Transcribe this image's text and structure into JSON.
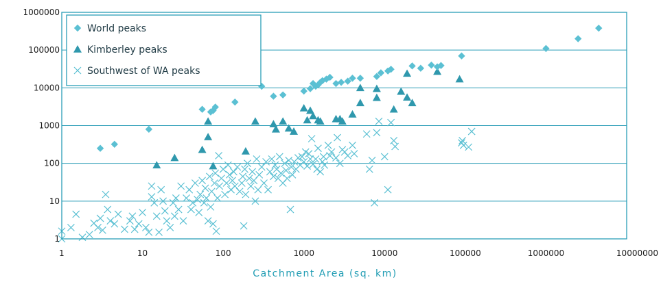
{
  "chart_data": {
    "type": "scatter",
    "title": "",
    "xlabel": "Catchment Area (sq. km)",
    "ylabel": "",
    "x_scale": "log",
    "y_scale": "log",
    "xlim": [
      1,
      10000000
    ],
    "ylim": [
      1,
      1000000
    ],
    "x_ticks": [
      "1",
      "10",
      "100",
      "1000",
      "10000",
      "100000",
      "1000000",
      "10000000"
    ],
    "y_ticks": [
      "1",
      "10",
      "100",
      "1000",
      "10000",
      "100000",
      "1000000"
    ],
    "grid": "horizontal",
    "legend_position": "top-left",
    "colors": {
      "marker": "#5bc0d3",
      "frame": "#2a9db6",
      "grid": "#2a9db6",
      "axis_title": "#1f9cb3"
    },
    "series": [
      {
        "name": "World peaks",
        "marker": "diamond",
        "points": [
          [
            3,
            250
          ],
          [
            4.5,
            320
          ],
          [
            12,
            800
          ],
          [
            55,
            2700
          ],
          [
            70,
            2300
          ],
          [
            75,
            2500
          ],
          [
            80,
            3100
          ],
          [
            140,
            4200
          ],
          [
            300,
            11000
          ],
          [
            420,
            6000
          ],
          [
            550,
            6500
          ],
          [
            1000,
            8200
          ],
          [
            1200,
            9500
          ],
          [
            1300,
            13000
          ],
          [
            1400,
            11000
          ],
          [
            1500,
            12000
          ],
          [
            1600,
            14000
          ],
          [
            1700,
            15500
          ],
          [
            1900,
            17000
          ],
          [
            2100,
            19000
          ],
          [
            2500,
            13000
          ],
          [
            2900,
            14000
          ],
          [
            3500,
            15000
          ],
          [
            4000,
            18000
          ],
          [
            5000,
            18000
          ],
          [
            8000,
            20000
          ],
          [
            9000,
            25000
          ],
          [
            11000,
            28000
          ],
          [
            12000,
            31000
          ],
          [
            22000,
            38000
          ],
          [
            28000,
            33000
          ],
          [
            38000,
            40000
          ],
          [
            45000,
            36000
          ],
          [
            50000,
            39000
          ],
          [
            90000,
            70000
          ],
          [
            1000000,
            110000
          ],
          [
            2500000,
            200000
          ],
          [
            4500000,
            380000
          ]
        ]
      },
      {
        "name": "Kimberley peaks",
        "marker": "triangle",
        "points": [
          [
            15,
            90
          ],
          [
            25,
            140
          ],
          [
            55,
            230
          ],
          [
            65,
            1300
          ],
          [
            65,
            500
          ],
          [
            75,
            85
          ],
          [
            190,
            210
          ],
          [
            250,
            1300
          ],
          [
            420,
            1100
          ],
          [
            450,
            800
          ],
          [
            550,
            1300
          ],
          [
            650,
            850
          ],
          [
            750,
            700
          ],
          [
            1000,
            2900
          ],
          [
            1100,
            1400
          ],
          [
            1200,
            2500
          ],
          [
            1300,
            1800
          ],
          [
            1500,
            1400
          ],
          [
            1600,
            1300
          ],
          [
            2500,
            1500
          ],
          [
            2800,
            1500
          ],
          [
            3000,
            1300
          ],
          [
            4000,
            2000
          ],
          [
            5000,
            4000
          ],
          [
            5000,
            10000
          ],
          [
            8000,
            5500
          ],
          [
            8000,
            9500
          ],
          [
            13000,
            2700
          ],
          [
            16000,
            8000
          ],
          [
            19000,
            24000
          ],
          [
            19000,
            5600
          ],
          [
            22000,
            4000
          ],
          [
            45000,
            27000
          ],
          [
            85000,
            17000
          ]
        ]
      },
      {
        "name": "Southwest of WA peaks",
        "marker": "x",
        "points": [
          [
            1,
            1.6
          ],
          [
            1,
            1
          ],
          [
            1.3,
            2
          ],
          [
            1.5,
            4.5
          ],
          [
            1.8,
            1.1
          ],
          [
            2.2,
            1.3
          ],
          [
            2.5,
            2.6
          ],
          [
            2.8,
            2
          ],
          [
            3,
            3.5
          ],
          [
            3.2,
            1.7
          ],
          [
            3.5,
            15
          ],
          [
            3.7,
            6
          ],
          [
            4,
            3
          ],
          [
            4.5,
            2.5
          ],
          [
            5,
            4.5
          ],
          [
            6,
            1.8
          ],
          [
            7,
            3
          ],
          [
            7.5,
            4
          ],
          [
            8,
            1.8
          ],
          [
            9,
            2.5
          ],
          [
            10,
            5
          ],
          [
            11,
            2
          ],
          [
            12,
            1.5
          ],
          [
            13,
            25
          ],
          [
            13,
            13
          ],
          [
            14,
            9
          ],
          [
            15,
            4
          ],
          [
            16,
            1.5
          ],
          [
            17,
            20
          ],
          [
            18,
            10
          ],
          [
            19,
            5.5
          ],
          [
            20,
            3
          ],
          [
            22,
            2
          ],
          [
            24,
            9
          ],
          [
            25,
            4
          ],
          [
            26,
            12
          ],
          [
            28,
            6
          ],
          [
            30,
            25
          ],
          [
            32,
            3
          ],
          [
            35,
            12
          ],
          [
            38,
            20
          ],
          [
            40,
            6
          ],
          [
            42,
            9
          ],
          [
            45,
            30
          ],
          [
            48,
            11
          ],
          [
            50,
            5
          ],
          [
            52,
            15
          ],
          [
            55,
            35
          ],
          [
            58,
            9
          ],
          [
            60,
            22
          ],
          [
            62,
            12
          ],
          [
            65,
            3
          ],
          [
            68,
            45
          ],
          [
            70,
            7
          ],
          [
            72,
            18
          ],
          [
            75,
            2.5
          ],
          [
            78,
            30
          ],
          [
            80,
            55
          ],
          [
            82,
            1.6
          ],
          [
            85,
            12
          ],
          [
            88,
            160
          ],
          [
            90,
            25
          ],
          [
            95,
            40
          ],
          [
            100,
            70
          ],
          [
            105,
            15
          ],
          [
            110,
            30
          ],
          [
            115,
            90
          ],
          [
            120,
            50
          ],
          [
            125,
            20
          ],
          [
            130,
            35
          ],
          [
            135,
            60
          ],
          [
            140,
            25
          ],
          [
            150,
            80
          ],
          [
            160,
            18
          ],
          [
            170,
            30
          ],
          [
            175,
            45
          ],
          [
            180,
            2.2
          ],
          [
            185,
            70
          ],
          [
            190,
            15
          ],
          [
            200,
            100
          ],
          [
            210,
            40
          ],
          [
            220,
            25
          ],
          [
            230,
            60
          ],
          [
            240,
            35
          ],
          [
            250,
            10
          ],
          [
            260,
            130
          ],
          [
            270,
            20
          ],
          [
            280,
            50
          ],
          [
            300,
            80
          ],
          [
            320,
            30
          ],
          [
            340,
            110
          ],
          [
            360,
            20
          ],
          [
            380,
            60
          ],
          [
            400,
            130
          ],
          [
            420,
            45
          ],
          [
            440,
            90
          ],
          [
            460,
            70
          ],
          [
            480,
            40
          ],
          [
            500,
            150
          ],
          [
            520,
            55
          ],
          [
            550,
            30
          ],
          [
            580,
            100
          ],
          [
            600,
            65
          ],
          [
            620,
            40
          ],
          [
            650,
            120
          ],
          [
            680,
            6
          ],
          [
            700,
            80
          ],
          [
            720,
            50
          ],
          [
            760,
            110
          ],
          [
            800,
            70
          ],
          [
            850,
            140
          ],
          [
            900,
            90
          ],
          [
            950,
            150
          ],
          [
            1000,
            110
          ],
          [
            1050,
            200
          ],
          [
            1100,
            85
          ],
          [
            1150,
            180
          ],
          [
            1200,
            130
          ],
          [
            1250,
            450
          ],
          [
            1300,
            95
          ],
          [
            1400,
            130
          ],
          [
            1450,
            70
          ],
          [
            1500,
            250
          ],
          [
            1600,
            60
          ],
          [
            1700,
            110
          ],
          [
            1750,
            150
          ],
          [
            1800,
            90
          ],
          [
            2000,
            300
          ],
          [
            2100,
            160
          ],
          [
            2200,
            200
          ],
          [
            2500,
            140
          ],
          [
            2600,
            480
          ],
          [
            2800,
            100
          ],
          [
            3000,
            230
          ],
          [
            3200,
            200
          ],
          [
            3500,
            160
          ],
          [
            4000,
            300
          ],
          [
            4200,
            180
          ],
          [
            6000,
            600
          ],
          [
            6500,
            70
          ],
          [
            7000,
            120
          ],
          [
            7500,
            9
          ],
          [
            8000,
            650
          ],
          [
            8500,
            1300
          ],
          [
            10000,
            150
          ],
          [
            11000,
            20
          ],
          [
            12000,
            1200
          ],
          [
            13000,
            400
          ],
          [
            13500,
            280
          ],
          [
            90000,
            350
          ],
          [
            92000,
            400
          ],
          [
            95000,
            300
          ],
          [
            110000,
            270
          ],
          [
            120000,
            700
          ]
        ]
      }
    ]
  }
}
